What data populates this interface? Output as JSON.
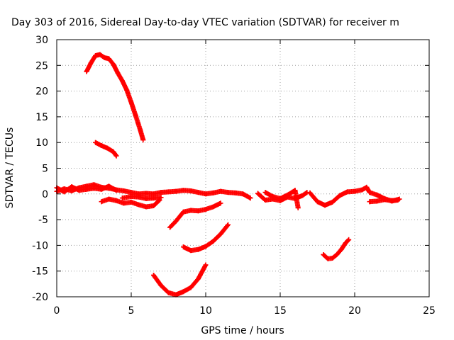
{
  "chart_data": {
    "type": "scatter",
    "title": "Day 303 of 2016, Sidereal Day-to-day VTEC variation (SDTVAR) for receiver m",
    "xlabel": "GPS time / hours",
    "ylabel": "SDTVAR / TECUs",
    "xlim": [
      0,
      25
    ],
    "ylim": [
      -20,
      30
    ],
    "xticks": [
      0,
      5,
      10,
      15,
      20,
      25
    ],
    "yticks": [
      -20,
      -15,
      -10,
      -5,
      0,
      5,
      10,
      15,
      20,
      25,
      30
    ],
    "grid": true,
    "legend": "none",
    "marker": "plus",
    "color": "#ff0000",
    "series": [
      {
        "points": [
          [
            0,
            0.5
          ],
          [
            0.5,
            1.0
          ],
          [
            1,
            0.6
          ],
          [
            1.5,
            1.2
          ],
          [
            2,
            1.5
          ],
          [
            2.5,
            1.8
          ],
          [
            3,
            1.3
          ],
          [
            3.5,
            1.1
          ],
          [
            4,
            0.8
          ],
          [
            4.5,
            0.6
          ],
          [
            5,
            0.3
          ],
          [
            5.5,
            0.0
          ],
          [
            6,
            0.1
          ],
          [
            6.5,
            0.0
          ],
          [
            7,
            0.3
          ],
          [
            7.5,
            0.4
          ],
          [
            8,
            0.5
          ],
          [
            8.5,
            0.7
          ],
          [
            9,
            0.6
          ],
          [
            9.5,
            0.3
          ],
          [
            10,
            0.0
          ],
          [
            10.5,
            0.2
          ],
          [
            11,
            0.5
          ],
          [
            11.5,
            0.3
          ],
          [
            12,
            0.2
          ],
          [
            12.5,
            0.0
          ],
          [
            13,
            -0.8
          ]
        ]
      },
      {
        "points": [
          [
            0,
            1.2
          ],
          [
            0.5,
            0.4
          ],
          [
            1,
            1.4
          ],
          [
            1.5,
            0.7
          ],
          [
            2,
            0.9
          ],
          [
            2.5,
            1.1
          ],
          [
            3,
            0.9
          ],
          [
            3.5,
            1.5
          ],
          [
            4,
            0.7
          ]
        ]
      },
      {
        "points": [
          [
            2,
            23.8
          ],
          [
            2.3,
            25.5
          ],
          [
            2.6,
            26.9
          ],
          [
            2.9,
            27.1
          ],
          [
            3.2,
            26.5
          ],
          [
            3.5,
            26.3
          ],
          [
            3.8,
            25.2
          ],
          [
            4.1,
            23.5
          ],
          [
            4.4,
            22.0
          ],
          [
            4.7,
            20.2
          ],
          [
            5.0,
            17.8
          ],
          [
            5.3,
            15.2
          ],
          [
            5.6,
            12.5
          ],
          [
            5.8,
            10.5
          ]
        ]
      },
      {
        "points": [
          [
            2.6,
            10.0
          ],
          [
            3.0,
            9.4
          ],
          [
            3.4,
            8.9
          ],
          [
            3.8,
            8.2
          ],
          [
            4.0,
            7.4
          ]
        ]
      },
      {
        "points": [
          [
            3.0,
            -1.5
          ],
          [
            3.5,
            -1.0
          ],
          [
            4.0,
            -1.3
          ],
          [
            4.5,
            -1.8
          ],
          [
            5.0,
            -1.6
          ],
          [
            5.5,
            -2.1
          ],
          [
            6.0,
            -2.5
          ],
          [
            6.5,
            -2.3
          ],
          [
            6.9,
            -1.2
          ]
        ]
      },
      {
        "points": [
          [
            4.4,
            -0.8
          ],
          [
            5.0,
            -0.5
          ],
          [
            5.5,
            -0.6
          ],
          [
            6.0,
            -0.9
          ],
          [
            6.5,
            -0.8
          ],
          [
            7.0,
            -0.7
          ]
        ]
      },
      {
        "points": [
          [
            7.6,
            -6.5
          ],
          [
            8.0,
            -5.3
          ],
          [
            8.5,
            -3.5
          ],
          [
            9.0,
            -3.2
          ],
          [
            9.5,
            -3.3
          ],
          [
            10.0,
            -3.0
          ],
          [
            10.5,
            -2.5
          ],
          [
            11.0,
            -1.8
          ]
        ]
      },
      {
        "points": [
          [
            8.5,
            -10.3
          ],
          [
            9.0,
            -11.0
          ],
          [
            9.5,
            -10.8
          ],
          [
            10.0,
            -10.2
          ],
          [
            10.5,
            -9.2
          ],
          [
            11.0,
            -7.8
          ],
          [
            11.5,
            -6.0
          ]
        ]
      },
      {
        "points": [
          [
            6.5,
            -15.8
          ],
          [
            7.0,
            -17.8
          ],
          [
            7.5,
            -19.2
          ],
          [
            8.0,
            -19.6
          ],
          [
            8.5,
            -19.0
          ],
          [
            9.0,
            -18.2
          ],
          [
            9.5,
            -16.5
          ],
          [
            10.0,
            -13.8
          ]
        ]
      },
      {
        "points": [
          [
            13.5,
            0.1
          ],
          [
            14.0,
            -1.2
          ],
          [
            14.5,
            -1.0
          ],
          [
            15.0,
            -1.3
          ],
          [
            15.5,
            -0.6
          ],
          [
            16.0,
            -0.9
          ],
          [
            16.5,
            -0.3
          ],
          [
            16.8,
            0.3
          ]
        ]
      },
      {
        "points": [
          [
            14.0,
            0.3
          ],
          [
            14.5,
            -0.5
          ],
          [
            15.0,
            -0.9
          ],
          [
            15.5,
            -0.2
          ],
          [
            16.0,
            0.7
          ],
          [
            16.2,
            -2.7
          ]
        ]
      },
      {
        "points": [
          [
            17.0,
            0.2
          ],
          [
            17.5,
            -1.5
          ],
          [
            18.0,
            -2.2
          ],
          [
            18.5,
            -1.6
          ],
          [
            19.0,
            -0.3
          ],
          [
            19.5,
            0.4
          ],
          [
            20.0,
            0.5
          ],
          [
            20.5,
            0.8
          ],
          [
            20.8,
            1.3
          ],
          [
            21.0,
            0.3
          ],
          [
            21.5,
            -0.2
          ],
          [
            22.0,
            -0.9
          ],
          [
            22.5,
            -1.4
          ],
          [
            23.0,
            -1.0
          ]
        ]
      },
      {
        "points": [
          [
            21.0,
            -1.5
          ],
          [
            21.5,
            -1.4
          ],
          [
            22.0,
            -1.1
          ],
          [
            22.5,
            -1.3
          ],
          [
            22.9,
            -1.2
          ]
        ]
      },
      {
        "points": [
          [
            17.9,
            -11.8
          ],
          [
            18.2,
            -12.6
          ],
          [
            18.5,
            -12.5
          ],
          [
            18.8,
            -11.8
          ],
          [
            19.1,
            -10.8
          ],
          [
            19.4,
            -9.5
          ],
          [
            19.6,
            -8.9
          ]
        ]
      }
    ]
  }
}
